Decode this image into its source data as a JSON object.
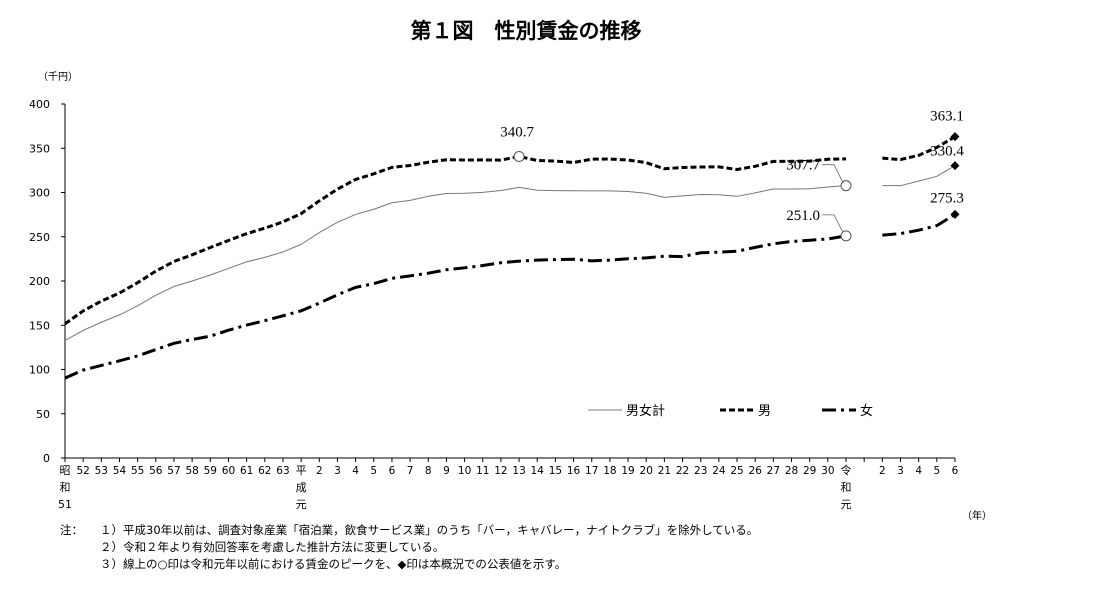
{
  "chart_data": {
    "type": "line",
    "title": "第１図　性別賃金の推移",
    "y_unit": "（千円）",
    "x_unit": "（年）",
    "ylim": [
      0,
      400
    ],
    "yticks": [
      0,
      50,
      100,
      150,
      200,
      250,
      300,
      350,
      400
    ],
    "x_tick_labels": [
      "昭和51",
      "52",
      "53",
      "54",
      "55",
      "56",
      "57",
      "58",
      "59",
      "60",
      "61",
      "62",
      "63",
      "平成元",
      "2",
      "3",
      "4",
      "5",
      "6",
      "7",
      "8",
      "9",
      "10",
      "11",
      "12",
      "13",
      "14",
      "15",
      "16",
      "17",
      "18",
      "19",
      "20",
      "21",
      "22",
      "23",
      "24",
      "25",
      "26",
      "27",
      "28",
      "29",
      "30",
      "令和元",
      "",
      "2",
      "3",
      "4",
      "5",
      "6"
    ],
    "series": [
      {
        "name": "男女計",
        "style": "solid",
        "segment1": [
          132.9,
          144.2,
          153.4,
          161.7,
          172.0,
          184.0,
          193.8,
          200.0,
          206.8,
          214.2,
          221.6,
          226.7,
          232.8,
          241.4,
          254.7,
          266.3,
          275.2,
          281.1,
          288.4,
          291.1,
          295.7,
          298.9,
          299.1,
          300.1,
          302.2,
          305.8,
          302.6,
          302.1,
          302.0,
          301.8,
          301.8,
          301.1,
          299.1,
          294.5,
          296.2,
          297.7,
          297.5,
          295.7,
          299.6,
          304.0,
          304.0,
          304.3,
          306.2,
          307.7
        ],
        "segment2": [
          307.7,
          307.7,
          312.8,
          318.3,
          330.4
        ]
      },
      {
        "name": "男",
        "style": "dashed",
        "segment1": [
          151.6,
          166.2,
          177.3,
          186.4,
          198.1,
          211.1,
          222.1,
          229.6,
          237.9,
          245.8,
          253.5,
          259.7,
          266.8,
          276.1,
          290.5,
          303.8,
          314.8,
          321.1,
          328.4,
          330.5,
          334.2,
          337.0,
          336.7,
          336.8,
          336.6,
          340.7,
          336.2,
          335.5,
          333.9,
          337.7,
          337.8,
          336.7,
          333.7,
          326.8,
          328.3,
          328.8,
          329.0,
          326.0,
          329.6,
          335.1,
          335.2,
          335.5,
          337.6,
          338.0
        ],
        "segment2": [
          338.8,
          337.2,
          342.0,
          350.9,
          363.1
        ]
      },
      {
        "name": "女",
        "style": "dashdot",
        "segment1": [
          90.3,
          99.4,
          104.6,
          109.8,
          115.4,
          122.5,
          129.6,
          133.9,
          137.7,
          144.4,
          150.2,
          155.2,
          160.7,
          166.3,
          175.0,
          184.4,
          192.8,
          197.0,
          203.0,
          205.8,
          208.8,
          212.7,
          214.9,
          217.5,
          220.6,
          222.4,
          223.6,
          224.2,
          224.6,
          222.8,
          223.6,
          225.2,
          226.1,
          228.0,
          227.6,
          231.9,
          232.6,
          233.6,
          238.0,
          242.0,
          244.6,
          246.1,
          247.5,
          251.0
        ],
        "segment2": [
          251.8,
          253.6,
          257.4,
          262.6,
          275.3
        ]
      }
    ],
    "annotations": [
      {
        "text": "340.7",
        "series": "男",
        "index": 25,
        "marker": "circle"
      },
      {
        "text": "307.7",
        "series": "男女計",
        "index": 43,
        "marker": "circle"
      },
      {
        "text": "251.0",
        "series": "女",
        "index": 43,
        "marker": "circle"
      },
      {
        "text": "363.1",
        "series": "男",
        "index": 49,
        "marker": "diamond"
      },
      {
        "text": "330.4",
        "series": "男女計",
        "index": 49,
        "marker": "diamond"
      },
      {
        "text": "275.3",
        "series": "女",
        "index": 49,
        "marker": "diamond"
      }
    ],
    "legend": [
      "男女計",
      "男",
      "女"
    ],
    "legend_position": "bottom-right"
  },
  "notes": {
    "label": "注：",
    "items": [
      "１）平成30年以前は、調査対象産業「宿泊業，飲食サービス業」のうち「バー，キャバレー，ナイトクラブ」を除外している。",
      "２）令和２年より有効回答率を考慮した推計方法に変更している。",
      "３）線上の○印は令和元年以前における賃金のピークを、◆印は本概況での公表値を示す。"
    ]
  }
}
